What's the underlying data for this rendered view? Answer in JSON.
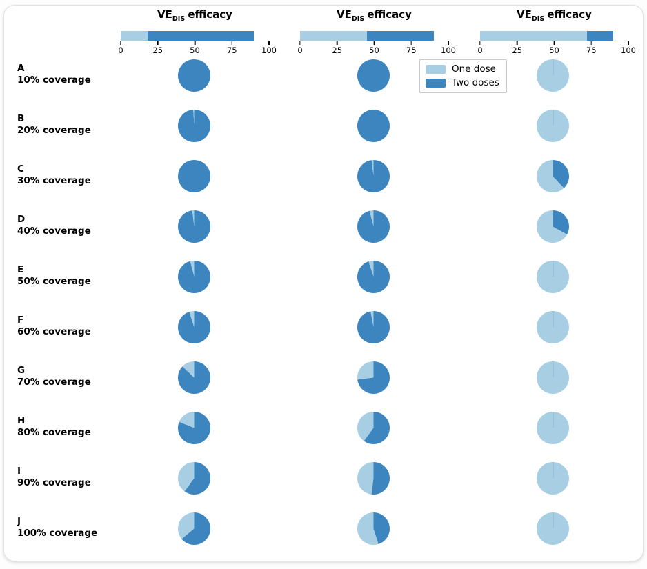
{
  "colors": {
    "one_dose": "#a8cee3",
    "two_doses": "#3c85be",
    "axis": "#000000"
  },
  "chart_data": {
    "type": "pie",
    "legend": [
      "One dose",
      "Two doses"
    ],
    "legend_position": "upper center, overlapping panels 2-3",
    "columns": [
      {
        "title": {
          "prefix": "VE",
          "subscript": "DIS",
          "suffix": "efficacy"
        },
        "scale": {
          "one_dose_ve": 18,
          "two_doses_ve": 90,
          "ticks": [
            0,
            25,
            50,
            75,
            100
          ],
          "xlim": [
            0,
            100
          ]
        }
      },
      {
        "title": {
          "prefix": "VE",
          "subscript": "DIS",
          "suffix": "efficacy"
        },
        "scale": {
          "one_dose_ve": 45,
          "two_doses_ve": 90,
          "ticks": [
            0,
            25,
            50,
            75,
            100
          ],
          "xlim": [
            0,
            100
          ]
        }
      },
      {
        "title": {
          "prefix": "VE",
          "subscript": "DIS",
          "suffix": "efficacy"
        },
        "scale": {
          "one_dose_ve": 72,
          "two_doses_ve": 90,
          "ticks": [
            0,
            25,
            50,
            75,
            100
          ],
          "xlim": [
            0,
            100
          ]
        }
      }
    ],
    "rows": [
      {
        "letter": "A",
        "coverage": "10% coverage",
        "one_dose_pct_by_column": [
          0,
          0,
          100
        ]
      },
      {
        "letter": "B",
        "coverage": "20% coverage",
        "one_dose_pct_by_column": [
          1,
          0,
          100
        ]
      },
      {
        "letter": "C",
        "coverage": "30% coverage",
        "one_dose_pct_by_column": [
          0,
          2,
          62
        ]
      },
      {
        "letter": "D",
        "coverage": "40% coverage",
        "one_dose_pct_by_column": [
          2,
          4,
          67
        ]
      },
      {
        "letter": "E",
        "coverage": "50% coverage",
        "one_dose_pct_by_column": [
          4,
          5,
          100
        ]
      },
      {
        "letter": "F",
        "coverage": "60% coverage",
        "one_dose_pct_by_column": [
          5,
          3,
          100
        ]
      },
      {
        "letter": "G",
        "coverage": "70% coverage",
        "one_dose_pct_by_column": [
          13,
          27,
          100
        ]
      },
      {
        "letter": "H",
        "coverage": "80% coverage",
        "one_dose_pct_by_column": [
          19,
          40,
          100
        ]
      },
      {
        "letter": "I",
        "coverage": "90% coverage",
        "one_dose_pct_by_column": [
          40,
          48,
          100
        ]
      },
      {
        "letter": "J",
        "coverage": "100% coverage",
        "one_dose_pct_by_column": [
          36,
          55,
          100
        ]
      }
    ]
  }
}
